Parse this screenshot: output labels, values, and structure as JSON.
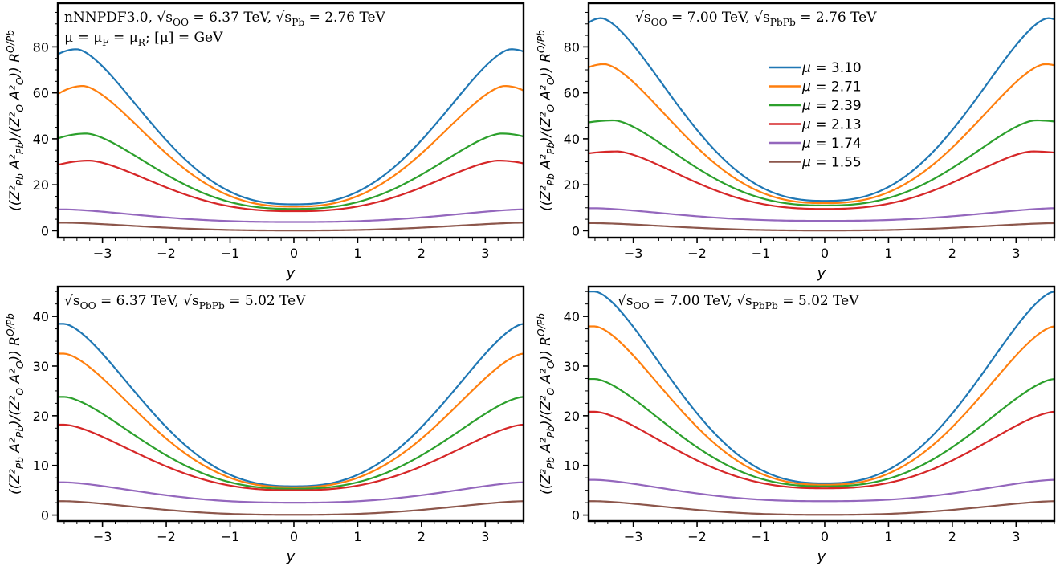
{
  "colors": [
    "#1f77b4",
    "#ff7f0e",
    "#2ca02c",
    "#d62728",
    "#9467bd",
    "#8c564b"
  ],
  "chart_data": [
    {
      "type": "line",
      "ann": [
        "nNNPDF3.0, √s_OO = 6.37 TeV, √s_Pb = 2.76 TeV",
        "μ = μ_F = μ_R; [μ] = GeV"
      ],
      "xlabel": "y",
      "ylabel": "((Z²_Pb A²_Pb)/(Z²_O A²_O)) R^O/Pb",
      "xlim": [
        -3.7,
        3.6
      ],
      "ylim": [
        -3,
        99
      ],
      "xticks": [
        -3,
        -2,
        -1,
        0,
        1,
        2,
        3
      ],
      "yticks": [
        0,
        20,
        40,
        60,
        80
      ],
      "series": [
        {
          "mu": "3.10",
          "end": 78,
          "peak": 79,
          "peakx": 3.4,
          "center": 11.5
        },
        {
          "mu": "2.71",
          "end": 61,
          "peak": 63,
          "peakx": 3.3,
          "center": 10.5
        },
        {
          "mu": "2.39",
          "end": 41,
          "peak": 42.3,
          "peakx": 3.25,
          "center": 9.5
        },
        {
          "mu": "2.13",
          "end": 29.3,
          "peak": 30.5,
          "peakx": 3.2,
          "center": 8.5
        },
        {
          "mu": "1.74",
          "end": 9.3,
          "peak": 9.3,
          "peakx": 3.6,
          "center": 3.8
        },
        {
          "mu": "1.55",
          "end": 3.5,
          "peak": 3.5,
          "peakx": 3.6,
          "center": 0.1
        }
      ]
    },
    {
      "type": "line",
      "ann": [
        "√s_OO = 7.00 TeV, √s_PbPb = 2.76 TeV"
      ],
      "xlabel": "y",
      "ylabel": "((Z²_Pb A²_Pb)/(Z²_O A²_O)) R^O/Pb",
      "xlim": [
        -3.7,
        3.6
      ],
      "ylim": [
        -3,
        99
      ],
      "xticks": [
        -3,
        -2,
        -1,
        0,
        1,
        2,
        3
      ],
      "yticks": [
        0,
        20,
        40,
        60,
        80
      ],
      "legend_placement": "center",
      "series": [
        {
          "mu": "3.10",
          "end": 92,
          "peak": 92.5,
          "peakx": 3.5,
          "center": 13
        },
        {
          "mu": "2.71",
          "end": 72,
          "peak": 72.5,
          "peakx": 3.45,
          "center": 12
        },
        {
          "mu": "2.39",
          "end": 47.5,
          "peak": 48,
          "peakx": 3.3,
          "center": 11
        },
        {
          "mu": "2.13",
          "end": 34,
          "peak": 34.5,
          "peakx": 3.25,
          "center": 9.5
        },
        {
          "mu": "1.74",
          "end": 9.8,
          "peak": 9.8,
          "peakx": 3.6,
          "center": 4.3
        },
        {
          "mu": "1.55",
          "end": 3.3,
          "peak": 3.3,
          "peakx": 3.6,
          "center": 0.1
        }
      ]
    },
    {
      "type": "line",
      "ann": [
        "√s_OO = 6.37 TeV, √s_PbPb = 5.02 TeV"
      ],
      "xlabel": "y",
      "ylabel": "((Z²_Pb A²_Pb)/(Z²_O A²_O)) R^O/Pb",
      "xlim": [
        -3.7,
        3.6
      ],
      "ylim": [
        -1.2,
        46
      ],
      "xticks": [
        -3,
        -2,
        -1,
        0,
        1,
        2,
        3
      ],
      "yticks": [
        0,
        10,
        20,
        30,
        40
      ],
      "series": [
        {
          "mu": "3.10",
          "end": 38.5,
          "peak": 38.5,
          "peakx": 3.6,
          "center": 5.8
        },
        {
          "mu": "2.71",
          "end": 32.5,
          "peak": 32.5,
          "peakx": 3.6,
          "center": 5.6
        },
        {
          "mu": "2.39",
          "end": 23.8,
          "peak": 23.8,
          "peakx": 3.6,
          "center": 5.3
        },
        {
          "mu": "2.13",
          "end": 18.2,
          "peak": 18.2,
          "peakx": 3.6,
          "center": 5.0
        },
        {
          "mu": "1.74",
          "end": 6.6,
          "peak": 6.6,
          "peakx": 3.6,
          "center": 2.5
        },
        {
          "mu": "1.55",
          "end": 2.8,
          "peak": 2.8,
          "peakx": 3.6,
          "center": 0.05
        }
      ]
    },
    {
      "type": "line",
      "ann": [
        "√s_OO = 7.00 TeV, √s_PbPb = 5.02 TeV"
      ],
      "xlabel": "y",
      "ylabel": "((Z²_Pb A²_Pb)/(Z²_O A²_O)) R^O/Pb",
      "xlim": [
        -3.7,
        3.6
      ],
      "ylim": [
        -1.2,
        46
      ],
      "xticks": [
        -3,
        -2,
        -1,
        0,
        1,
        2,
        3
      ],
      "yticks": [
        0,
        10,
        20,
        30,
        40
      ],
      "series": [
        {
          "mu": "3.10",
          "end": 45,
          "peak": 45,
          "peakx": 3.6,
          "center": 6.4
        },
        {
          "mu": "2.71",
          "end": 38,
          "peak": 38,
          "peakx": 3.6,
          "center": 6.1
        },
        {
          "mu": "2.39",
          "end": 27.4,
          "peak": 27.4,
          "peakx": 3.6,
          "center": 5.8
        },
        {
          "mu": "2.13",
          "end": 20.8,
          "peak": 20.8,
          "peakx": 3.6,
          "center": 5.4
        },
        {
          "mu": "1.74",
          "end": 7.1,
          "peak": 7.1,
          "peakx": 3.6,
          "center": 2.8
        },
        {
          "mu": "1.55",
          "end": 2.8,
          "peak": 2.8,
          "peakx": 3.6,
          "center": 0.05
        }
      ]
    }
  ]
}
